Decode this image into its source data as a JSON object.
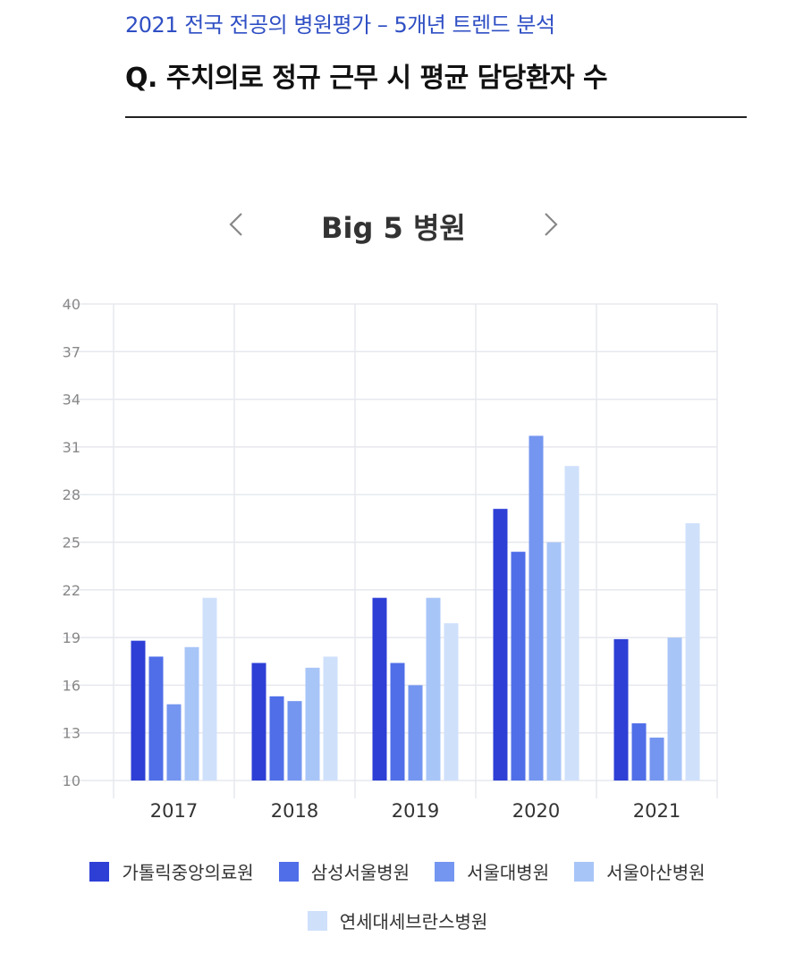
{
  "header": {
    "subtitle": "2021 전국 전공의 병원평가 – 5개년 트렌드 분석",
    "question": "Q. 주치의로 정규 근무 시 평균 담당환자 수"
  },
  "nav": {
    "title": "Big 5 병원",
    "prev_icon": "chevron-left-icon",
    "next_icon": "chevron-right-icon"
  },
  "chart_data": {
    "type": "bar",
    "categories": [
      "2017",
      "2018",
      "2019",
      "2020",
      "2021"
    ],
    "ylim": [
      10,
      40
    ],
    "yticks": [
      10,
      13,
      16,
      19,
      22,
      25,
      28,
      31,
      34,
      37,
      40
    ],
    "grid": true,
    "legend_position": "bottom",
    "series": [
      {
        "name": "가톨릭중앙의료원",
        "color": "#2e3fd6",
        "values": [
          18.8,
          17.4,
          21.5,
          27.1,
          18.9
        ]
      },
      {
        "name": "삼성서울병원",
        "color": "#4f6ee8",
        "values": [
          17.8,
          15.3,
          17.4,
          24.4,
          13.6
        ]
      },
      {
        "name": "서울대병원",
        "color": "#7496f0",
        "values": [
          14.8,
          15.0,
          16.0,
          31.7,
          12.7
        ]
      },
      {
        "name": "서울아산병원",
        "color": "#a8c5f8",
        "values": [
          18.4,
          17.1,
          21.5,
          25.0,
          19.0
        ]
      },
      {
        "name": "연세대세브란스병원",
        "color": "#cfe0fb",
        "values": [
          21.5,
          17.8,
          19.9,
          29.8,
          26.2
        ]
      }
    ]
  }
}
